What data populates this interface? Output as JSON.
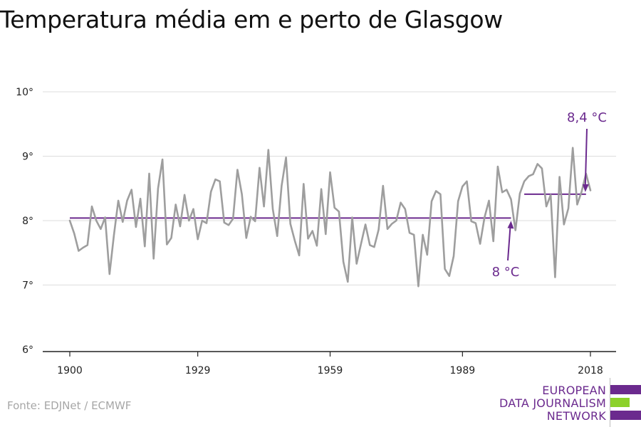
{
  "title": "Temperatura média em e perto de Glasgow",
  "source": "Fonte: EDJNet / ECMWF",
  "logo": {
    "line1": "EUROPEAN",
    "line2": "DATA JOURNALISM",
    "line3": "NETWORK"
  },
  "colors": {
    "series": "#9e9e9e",
    "average": "#6b2a8e",
    "grid": "#dddddd",
    "logo_green": "#8cd12a"
  },
  "chart_data": {
    "type": "line",
    "title": "Temperatura média em e perto de Glasgow",
    "xlabel": "",
    "ylabel": "",
    "x_ticks": [
      "1900",
      "1929",
      "1959",
      "1989",
      "2018"
    ],
    "y_ticks": [
      "6°",
      "7°",
      "8°",
      "9°",
      "10°"
    ],
    "xlim": [
      1900,
      2018
    ],
    "ylim": [
      6,
      10
    ],
    "grid": true,
    "series": [
      {
        "x": [
          1900,
          1901,
          1902,
          1903,
          1904,
          1905,
          1906,
          1907,
          1908,
          1909,
          1910,
          1911,
          1912,
          1913,
          1914,
          1915,
          1916,
          1917,
          1918,
          1919,
          1920,
          1921,
          1922,
          1923,
          1924,
          1925,
          1926,
          1927,
          1928,
          1929,
          1930,
          1931,
          1932,
          1933,
          1934,
          1935,
          1936,
          1937,
          1938,
          1939,
          1940,
          1941,
          1942,
          1943,
          1944,
          1945,
          1946,
          1947,
          1948,
          1949,
          1950,
          1951,
          1952,
          1953,
          1954,
          1955,
          1956,
          1957,
          1958,
          1959,
          1960,
          1961,
          1962,
          1963,
          1964,
          1965,
          1966,
          1967,
          1968,
          1969,
          1970,
          1971,
          1972,
          1973,
          1974,
          1975,
          1976,
          1977,
          1978,
          1979,
          1980,
          1981,
          1982,
          1983,
          1984,
          1985,
          1986,
          1987,
          1988,
          1989,
          1990,
          1991,
          1992,
          1993,
          1994,
          1995,
          1996,
          1997,
          1998,
          1999,
          2000,
          2001,
          2002,
          2003,
          2004,
          2005,
          2006,
          2007,
          2008,
          2009,
          2010,
          2011,
          2012,
          2013,
          2014,
          2015,
          2016,
          2017,
          2018
        ],
        "values": [
          8.0,
          7.8,
          7.53,
          7.58,
          7.62,
          8.22,
          8.0,
          7.87,
          8.05,
          7.17,
          7.77,
          8.31,
          7.98,
          8.31,
          8.48,
          7.9,
          8.34,
          7.6,
          8.73,
          7.41,
          8.5,
          8.95,
          7.63,
          7.73,
          8.25,
          7.91,
          8.4,
          8.0,
          8.18,
          7.71,
          8.0,
          7.96,
          8.45,
          8.64,
          8.61,
          7.97,
          7.93,
          8.03,
          8.79,
          8.41,
          7.73,
          8.06,
          7.99,
          8.82,
          8.22,
          9.1,
          8.18,
          7.76,
          8.54,
          8.98,
          7.95,
          7.69,
          7.46,
          8.57,
          7.72,
          7.84,
          7.61,
          8.49,
          7.79,
          8.75,
          8.2,
          8.14,
          7.36,
          7.05,
          8.05,
          7.33,
          7.64,
          7.94,
          7.62,
          7.59,
          7.86,
          8.54,
          7.87,
          7.95,
          8.0,
          8.28,
          8.18,
          7.81,
          7.78,
          6.98,
          7.78,
          7.47,
          8.3,
          8.46,
          8.41,
          7.25,
          7.14,
          7.45,
          8.3,
          8.53,
          8.61,
          7.99,
          7.96,
          7.64,
          8.05,
          8.31,
          7.68,
          8.84,
          8.44,
          8.48,
          8.33,
          7.85,
          8.42,
          8.61,
          8.69,
          8.72,
          8.88,
          8.81,
          8.22,
          8.4,
          7.12,
          8.68,
          7.94,
          8.19,
          9.13,
          8.25,
          8.45,
          8.73,
          8.47
        ]
      }
    ],
    "reference_lines": [
      {
        "value": 8.04,
        "x_start": 1900,
        "x_end": 2000
      },
      {
        "value": 8.41,
        "x_start": 2003,
        "x_end": 2017
      }
    ],
    "annotations": [
      {
        "text": "8 °C"
      },
      {
        "text": "8,4 °C"
      }
    ]
  }
}
